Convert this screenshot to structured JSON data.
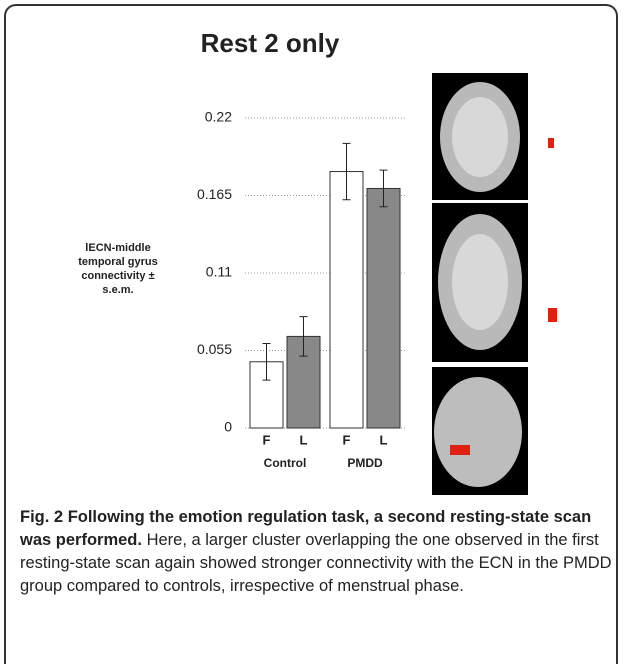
{
  "chart_data": {
    "type": "bar",
    "title": "Rest 2 only",
    "ylabel": [
      "lECN-middle",
      "temporal gyrus",
      "connectivity ±",
      "s.e.m."
    ],
    "categories": [
      "Control",
      "PMDD"
    ],
    "series": [
      {
        "name": "F",
        "color": "#ffffff",
        "values": [
          0.047,
          0.182
        ],
        "errors": [
          0.013,
          0.02
        ]
      },
      {
        "name": "L",
        "color": "#888888",
        "values": [
          0.065,
          0.17
        ],
        "errors": [
          0.014,
          0.013
        ]
      }
    ],
    "ylim": [
      0,
      0.22
    ],
    "yticks": [
      0,
      0.055,
      0.11,
      0.165,
      0.22
    ],
    "grid": true
  },
  "caption": {
    "label": "Fig. 2",
    "title": "Following the emotion regulation task, a second resting-state scan was performed.",
    "text": "Here, a larger cluster overlapping the one observed in the first resting-state scan again showed stronger connectivity with the ECN in the PMDD group compared to controls, irrespective of menstrual phase."
  }
}
